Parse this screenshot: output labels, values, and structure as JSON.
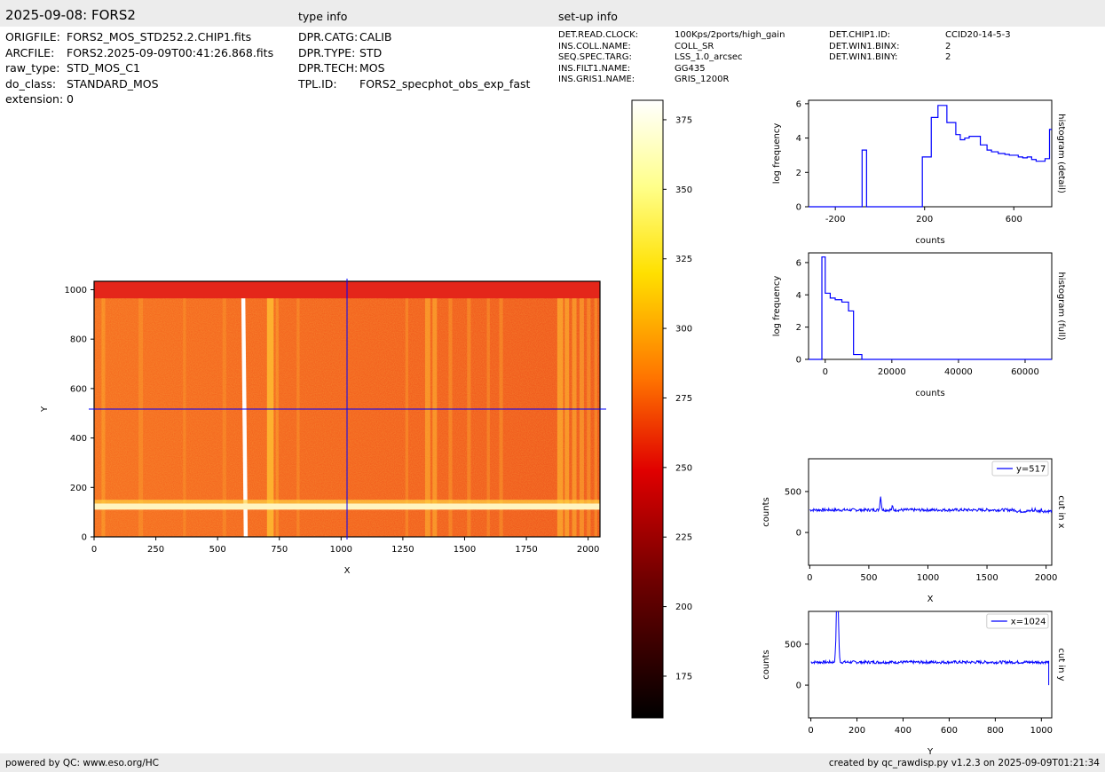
{
  "header": {
    "title": "2025-09-08: FORS2",
    "type_info_label": "type info",
    "setup_info_label": "set-up info"
  },
  "file_info": [
    {
      "key": "ORIGFILE:",
      "value": "FORS2_MOS_STD252.2.CHIP1.fits"
    },
    {
      "key": "ARCFILE:",
      "value": "FORS2.2025-09-09T00:41:26.868.fits"
    },
    {
      "key": "raw_type:",
      "value": "STD_MOS_C1"
    },
    {
      "key": "do_class:",
      "value": "STANDARD_MOS"
    },
    {
      "key": "extension:",
      "value": "0"
    }
  ],
  "type_info": [
    {
      "key": "DPR.CATG:",
      "value": "CALIB"
    },
    {
      "key": "DPR.TYPE:",
      "value": "STD"
    },
    {
      "key": "DPR.TECH:",
      "value": "MOS"
    },
    {
      "key": "TPL.ID:",
      "value": "FORS2_specphot_obs_exp_fast"
    }
  ],
  "setup_info": {
    "col1": [
      {
        "key": "DET.READ.CLOCK:",
        "value": "100Kps/2ports/high_gain"
      },
      {
        "key": "INS.COLL.NAME:",
        "value": "COLL_SR"
      },
      {
        "key": "SEQ.SPEC.TARG:",
        "value": "LSS_1.0_arcsec"
      },
      {
        "key": "INS.FILT1.NAME:",
        "value": "GG435"
      },
      {
        "key": "INS.GRIS1.NAME:",
        "value": "GRIS_1200R"
      }
    ],
    "col2": [
      {
        "key": "DET.CHIP1.ID:",
        "value": "CCID20-14-5-3"
      },
      {
        "key": "DET.WIN1.BINX:",
        "value": "2"
      },
      {
        "key": "DET.WIN1.BINY:",
        "value": "2"
      }
    ]
  },
  "footer": {
    "left": "powered by QC: www.eso.org/HC",
    "right": "created by qc_rawdisp.py v1.2.3 on 2025-09-09T01:21:34"
  },
  "colors": {
    "line": "#0000ff",
    "header_bg": "#ececec",
    "colormap": [
      "#000000",
      "#8b0000",
      "#ff2a00",
      "#ff9a00",
      "#ffff00",
      "#ffffe0",
      "#ffffff"
    ]
  },
  "chart_data": [
    {
      "id": "image",
      "type": "heatmap",
      "xlabel": "X",
      "ylabel": "Y",
      "xlim": [
        0,
        2048
      ],
      "ylim": [
        0,
        1034
      ],
      "xticks": [
        0,
        250,
        500,
        750,
        1000,
        1250,
        1500,
        1750,
        2000
      ],
      "yticks": [
        0,
        200,
        400,
        600,
        800,
        1000
      ],
      "crosshair": {
        "x": 1024,
        "y": 517
      },
      "colormap": "hot"
    },
    {
      "id": "colorbar",
      "type": "colorbar",
      "range": [
        160,
        382
      ],
      "ticks": [
        175,
        200,
        225,
        250,
        275,
        300,
        325,
        350,
        375
      ]
    },
    {
      "id": "hist_detail",
      "type": "line",
      "xlabel": "counts",
      "ylabel": "log frequency",
      "side_label": "histogram (detail)",
      "xlim": [
        -320,
        770
      ],
      "ylim": [
        0,
        6.2
      ],
      "xticks": [
        -200,
        200,
        600
      ],
      "yticks": [
        0,
        2,
        4,
        6
      ],
      "step_edges": [
        -320,
        -80,
        -60,
        190,
        230,
        260,
        300,
        340,
        360,
        380,
        400,
        450,
        480,
        500,
        530,
        560,
        580,
        620,
        640,
        660,
        680,
        700,
        740,
        760,
        770
      ],
      "step_values": [
        0,
        3.3,
        0,
        2.9,
        5.2,
        5.9,
        4.9,
        4.2,
        3.9,
        4.0,
        4.1,
        3.6,
        3.3,
        3.2,
        3.1,
        3.05,
        3.0,
        2.9,
        2.85,
        2.9,
        2.75,
        2.65,
        2.8,
        4.5
      ]
    },
    {
      "id": "hist_full",
      "type": "line",
      "xlabel": "counts",
      "ylabel": "log frequency",
      "side_label": "histogram (full)",
      "xlim": [
        -5000,
        68000
      ],
      "ylim": [
        0,
        6.6
      ],
      "xticks": [
        0,
        20000,
        40000,
        60000
      ],
      "yticks": [
        0,
        2,
        4,
        6
      ],
      "step_edges": [
        -5000,
        -1000,
        0,
        1500,
        3000,
        5000,
        7000,
        8500,
        10000,
        11000,
        68000
      ],
      "step_values": [
        0,
        6.35,
        4.1,
        3.8,
        3.7,
        3.55,
        3.0,
        0.3,
        0.3,
        0
      ]
    },
    {
      "id": "cut_x",
      "type": "line",
      "xlabel": "X",
      "ylabel": "counts",
      "side_label": "cut in x",
      "legend": "y=517",
      "xlim": [
        -10,
        2048
      ],
      "ylim": [
        -400,
        900
      ],
      "xticks": [
        0,
        500,
        1000,
        1500,
        2000
      ],
      "yticks": [
        0,
        500
      ],
      "baseline": 275,
      "features": [
        {
          "x": 600,
          "peak": 440,
          "width": 8
        },
        {
          "x": 700,
          "peak": 320,
          "width": 6
        },
        {
          "x": 1880,
          "peak": 300,
          "width": 6
        },
        {
          "x": 1910,
          "peak": 305,
          "width": 6
        },
        {
          "x": 1960,
          "peak": 300,
          "width": 6
        }
      ]
    },
    {
      "id": "cut_y",
      "type": "line",
      "xlabel": "Y",
      "ylabel": "counts",
      "side_label": "cut in y",
      "legend": "x=1024",
      "xlim": [
        -10,
        1045
      ],
      "ylim": [
        -400,
        900
      ],
      "xticks": [
        0,
        200,
        400,
        600,
        800,
        1000
      ],
      "yticks": [
        0,
        500
      ],
      "baseline": 280,
      "features": [
        {
          "x": 115,
          "peak": 1300,
          "width": 6
        }
      ],
      "end_drop": {
        "x": 1032,
        "value": 0
      }
    }
  ]
}
